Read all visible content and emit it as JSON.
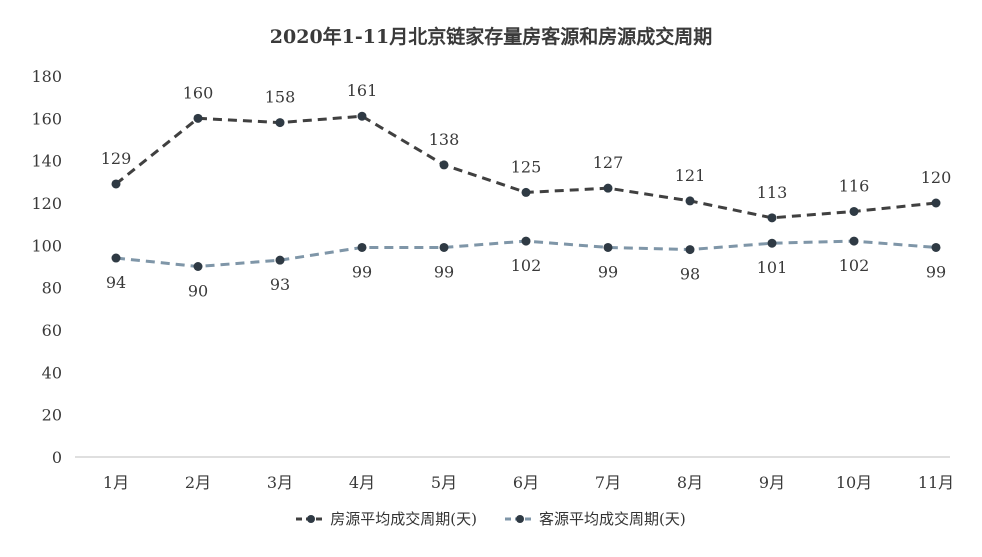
{
  "chart_data": {
    "type": "line",
    "title": "2020年1-11月北京链家存量房客源和房源成交周期",
    "categories": [
      "1月",
      "2月",
      "3月",
      "4月",
      "5月",
      "6月",
      "7月",
      "8月",
      "9月",
      "10月",
      "11月"
    ],
    "series": [
      {
        "name": "房源平均成交周期(天)",
        "values": [
          129,
          160,
          158,
          161,
          138,
          125,
          127,
          121,
          113,
          116,
          120
        ],
        "color": "#404040",
        "dash": "dashed",
        "label_position": "above"
      },
      {
        "name": "客源平均成交周期(天)",
        "values": [
          94,
          90,
          93,
          99,
          99,
          102,
          99,
          98,
          101,
          102,
          99
        ],
        "color": "#7f96a8",
        "dash": "dashed",
        "label_position": "below"
      }
    ],
    "data_labels": [
      [
        "129",
        "160",
        "158",
        "161",
        "138",
        "125",
        "127",
        "121",
        "113",
        "116",
        "120"
      ],
      [
        "94",
        "90",
        "93",
        "99",
        "99",
        "102",
        "99",
        "98",
        "101",
        "102",
        "99"
      ]
    ],
    "yticks": [
      "0",
      "20",
      "40",
      "60",
      "80",
      "100",
      "120",
      "140",
      "160",
      "180"
    ],
    "ylim": [
      0,
      180
    ],
    "grid": false,
    "legend_position": "bottom",
    "xlabel": "",
    "ylabel": ""
  }
}
